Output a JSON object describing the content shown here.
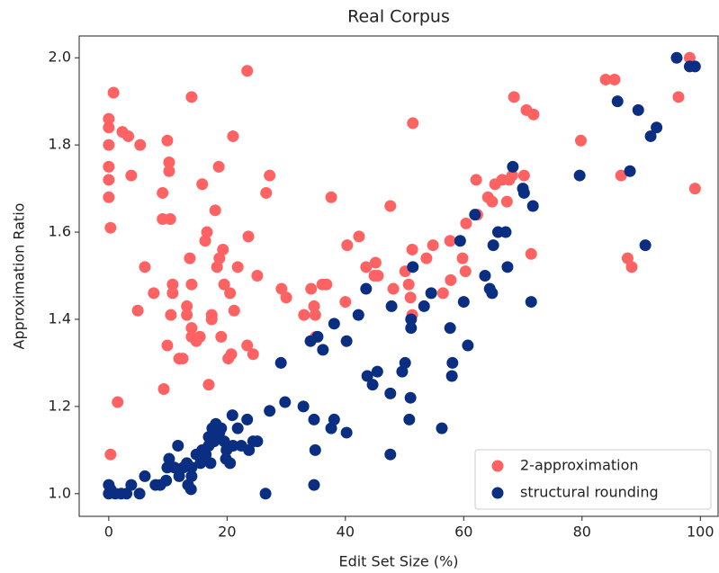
{
  "chart_data": {
    "type": "scatter",
    "title": "Real Corpus",
    "x_label": "Edit Set Size (%)",
    "y_label": "Approximation Ratio",
    "xlim": [
      -5,
      103
    ],
    "ylim": [
      0.948,
      2.05
    ],
    "xticks": [
      0,
      20,
      40,
      60,
      80,
      100
    ],
    "yticks": [
      {
        "value": 1.0,
        "label": "1.0"
      },
      {
        "value": 1.2,
        "label": "1.2"
      },
      {
        "value": 1.4,
        "label": "1.4"
      },
      {
        "value": 1.6,
        "label": "1.6"
      },
      {
        "value": 1.8,
        "label": "1.8"
      },
      {
        "value": 2.0,
        "label": "2.0"
      }
    ],
    "legend": "lower right",
    "series": [
      {
        "name": "2-approximation",
        "color": "#ff6262",
        "x": [
          0,
          0,
          0,
          0,
          0,
          0,
          0.3,
          0.8,
          0.3,
          1.5,
          2.3,
          3.3,
          3.8,
          5.3,
          4.9,
          6.1,
          7.6,
          9.1,
          9.1,
          9.3,
          9.9,
          10.2,
          10.2,
          10.4,
          9.9,
          10.5,
          10.8,
          10.8,
          11.9,
          12.5,
          13.2,
          13.2,
          13.7,
          14.0,
          14.0,
          14.0,
          14.0,
          14.8,
          15.4,
          15.8,
          16.3,
          16.6,
          16.9,
          17.4,
          17.4,
          18.0,
          18.3,
          18.6,
          18.7,
          19.0,
          19.3,
          19.5,
          20.2,
          20.5,
          20.7,
          21.0,
          21.2,
          21.8,
          23.4,
          23.6,
          23.4,
          24.4,
          25.1,
          26.6,
          27.2,
          29.2,
          30.0,
          33.0,
          34.2,
          34.7,
          34.9,
          35.0,
          36.1,
          36.8,
          37.6,
          40.3,
          40.0,
          42.3,
          43.5,
          44.9,
          45.1,
          45.5,
          47.6,
          48.1,
          50.1,
          50.7,
          51.0,
          51.3,
          51.4,
          51.3,
          53.7,
          54.8,
          56.5,
          57.7,
          57.8,
          59.8,
          60.4,
          60.3,
          62.1,
          62.3,
          64.1,
          64.8,
          65.3,
          66.5,
          67.3,
          67.7,
          68.2,
          68.5,
          70.2,
          70.6,
          71.8,
          71.4,
          79.8,
          84.0,
          85.5,
          86.6,
          87.7,
          88.4,
          96.3,
          98.2,
          99.1
        ],
        "values": [
          1.86,
          1.84,
          1.8,
          1.75,
          1.72,
          1.68,
          1.61,
          1.92,
          1.09,
          1.21,
          1.83,
          1.82,
          1.73,
          1.8,
          1.42,
          1.52,
          1.46,
          1.63,
          1.69,
          1.24,
          1.81,
          1.76,
          1.74,
          1.63,
          1.34,
          1.41,
          1.48,
          1.46,
          1.31,
          1.31,
          1.43,
          1.41,
          1.54,
          1.48,
          1.91,
          1.38,
          1.36,
          1.35,
          1.36,
          1.71,
          1.58,
          1.6,
          1.25,
          1.4,
          1.41,
          1.65,
          1.52,
          1.75,
          1.54,
          1.36,
          1.56,
          1.48,
          1.31,
          1.46,
          1.32,
          1.82,
          1.42,
          1.52,
          1.97,
          1.59,
          1.34,
          1.32,
          1.5,
          1.69,
          1.73,
          1.47,
          1.45,
          1.41,
          1.47,
          1.43,
          1.41,
          1.36,
          1.48,
          1.48,
          1.68,
          1.57,
          1.44,
          1.59,
          1.52,
          1.5,
          1.53,
          1.5,
          1.66,
          1.47,
          1.51,
          1.48,
          1.45,
          1.56,
          1.85,
          1.41,
          1.54,
          1.57,
          1.46,
          1.58,
          1.49,
          1.54,
          1.62,
          1.51,
          1.72,
          1.64,
          1.68,
          1.67,
          1.71,
          1.72,
          1.67,
          1.72,
          1.73,
          1.91,
          1.73,
          1.88,
          1.87,
          1.55,
          1.81,
          1.95,
          1.95,
          1.73,
          1.54,
          1.52,
          1.91,
          2.0,
          1.7
        ]
      },
      {
        "name": "structural rounding",
        "color": "#0a2f82",
        "x": [
          0,
          0,
          0.3,
          1.1,
          2.1,
          3.0,
          3.8,
          5.2,
          6.1,
          7.9,
          8.7,
          9.7,
          9.9,
          10.2,
          11.1,
          11.7,
          11.9,
          12.6,
          13.2,
          13.4,
          13.9,
          14.0,
          14.0,
          14.8,
          15.5,
          15.8,
          16.4,
          16.9,
          16.9,
          17.2,
          17.5,
          17.8,
          18.1,
          18.7,
          19.0,
          19.5,
          19.8,
          19.9,
          20.5,
          20.9,
          21.0,
          21.8,
          22.4,
          23.4,
          23.7,
          24.4,
          25.1,
          26.5,
          27.2,
          29.1,
          29.8,
          32.9,
          34.1,
          34.7,
          34.7,
          34.9,
          35.3,
          36.2,
          37.6,
          38.1,
          38.1,
          40.2,
          40.2,
          42.2,
          43.5,
          43.7,
          44.6,
          45.4,
          47.6,
          47.6,
          47.8,
          49.6,
          50.1,
          50.8,
          51.0,
          51.1,
          51.1,
          51.4,
          53.3,
          54.5,
          56.3,
          57.7,
          58.0,
          58.1,
          59.4,
          60.0,
          60.7,
          61.9,
          63.6,
          64.4,
          64.8,
          65.0,
          65.8,
          67.1,
          67.4,
          68.3,
          70.0,
          70.2,
          71.4,
          71.7,
          79.6,
          86.0,
          88.1,
          89.5,
          90.7,
          91.6,
          92.6,
          96.0,
          98.2,
          99.1
        ],
        "values": [
          1.0,
          1.02,
          1.01,
          1.0,
          1.0,
          1.0,
          1.02,
          1.0,
          1.04,
          1.02,
          1.02,
          1.03,
          1.06,
          1.08,
          1.06,
          1.11,
          1.04,
          1.06,
          1.07,
          1.02,
          1.01,
          1.04,
          1.06,
          1.09,
          1.07,
          1.1,
          1.09,
          1.13,
          1.11,
          1.07,
          1.15,
          1.12,
          1.16,
          1.14,
          1.15,
          1.12,
          1.08,
          1.1,
          1.07,
          1.18,
          1.11,
          1.15,
          1.11,
          1.17,
          1.1,
          1.12,
          1.12,
          1.0,
          1.19,
          1.3,
          1.21,
          1.2,
          1.35,
          1.17,
          1.02,
          1.1,
          1.36,
          1.33,
          1.15,
          1.39,
          1.17,
          1.14,
          1.35,
          1.41,
          1.47,
          1.27,
          1.25,
          1.28,
          1.23,
          1.09,
          1.43,
          1.28,
          1.3,
          1.17,
          1.22,
          1.38,
          1.4,
          1.52,
          1.43,
          1.46,
          1.15,
          1.38,
          1.27,
          1.3,
          1.58,
          1.44,
          1.34,
          1.64,
          1.5,
          1.47,
          1.46,
          1.57,
          1.6,
          1.6,
          1.52,
          1.75,
          1.7,
          1.69,
          1.44,
          1.66,
          1.73,
          1.9,
          1.74,
          1.88,
          1.57,
          1.82,
          1.84,
          2.0,
          1.98,
          1.98
        ]
      }
    ]
  }
}
